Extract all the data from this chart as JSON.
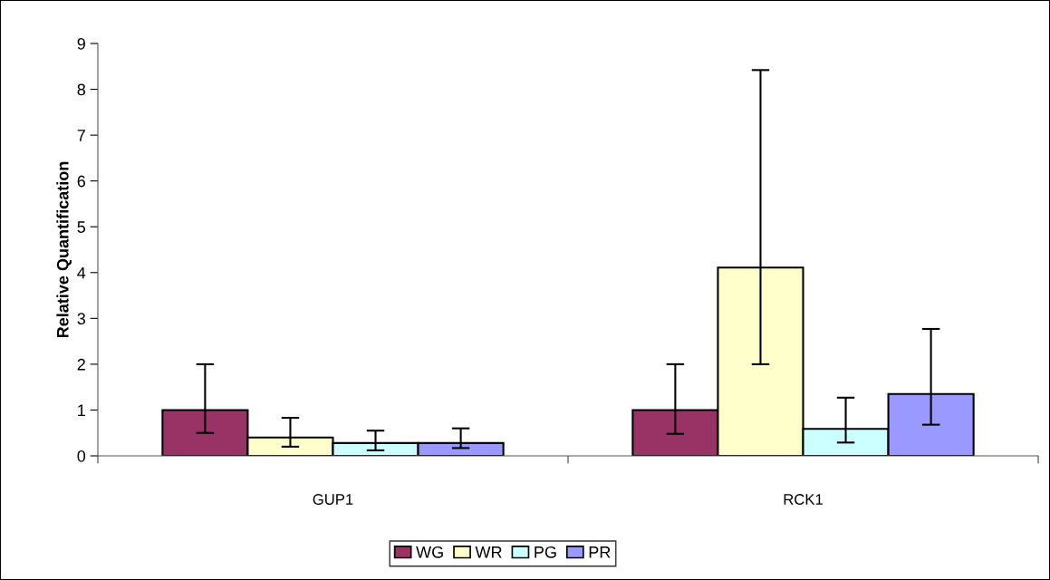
{
  "chart_data": {
    "type": "bar",
    "ylabel": "Relative Quantification",
    "categories": [
      "GUP1",
      "RCK1"
    ],
    "series": [
      {
        "name": "WG",
        "color": "#993366",
        "values": [
          1,
          1
        ],
        "errors": [
          [
            0.5,
            2.0
          ],
          [
            0.48,
            2.0
          ]
        ]
      },
      {
        "name": "WR",
        "color": "#ffffcc",
        "values": [
          0.4,
          4.11
        ],
        "errors": [
          [
            0.2,
            0.83
          ],
          [
            2.0,
            8.42
          ]
        ]
      },
      {
        "name": "PG",
        "color": "#ccffff",
        "values": [
          0.28,
          0.59
        ],
        "errors": [
          [
            0.12,
            0.55
          ],
          [
            0.29,
            1.27
          ]
        ]
      },
      {
        "name": "PR",
        "color": "#9999ff",
        "values": [
          0.28,
          1.35
        ],
        "errors": [
          [
            0.17,
            0.6
          ],
          [
            0.68,
            2.77
          ]
        ]
      }
    ],
    "ylim": [
      0,
      9
    ],
    "yticks": [
      0,
      1,
      2,
      3,
      4,
      5,
      6,
      7,
      8,
      9
    ],
    "grid": false,
    "legend": "bottom"
  }
}
